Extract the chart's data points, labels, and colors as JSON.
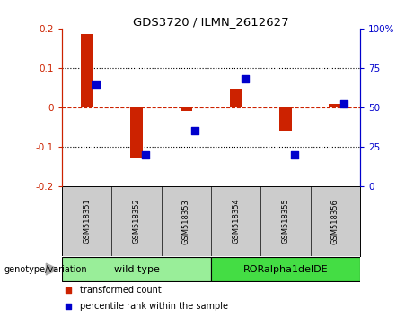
{
  "title": "GDS3720 / ILMN_2612627",
  "samples": [
    "GSM518351",
    "GSM518352",
    "GSM518353",
    "GSM518354",
    "GSM518355",
    "GSM518356"
  ],
  "transformed_count": [
    0.185,
    -0.128,
    -0.008,
    0.048,
    -0.058,
    0.008
  ],
  "percentile_rank_pct": [
    65,
    20,
    35,
    68,
    20,
    52
  ],
  "ylim": [
    -0.2,
    0.2
  ],
  "yticks_left": [
    -0.2,
    -0.1,
    0,
    0.1,
    0.2
  ],
  "yticks_right": [
    0,
    25,
    50,
    75,
    100
  ],
  "bar_color": "#cc2200",
  "dot_color": "#0000cc",
  "zero_line_color": "#cc2200",
  "grid_color": "#000000",
  "bg_color": "#ffffff",
  "group1_label": "wild type",
  "group2_label": "RORalpha1delDE",
  "group1_indices": [
    0,
    1,
    2
  ],
  "group2_indices": [
    3,
    4,
    5
  ],
  "group1_color": "#99ee99",
  "group2_color": "#44dd44",
  "genotype_label": "genotype/variation",
  "legend_red": "transformed count",
  "legend_blue": "percentile rank within the sample",
  "sample_bg": "#cccccc"
}
